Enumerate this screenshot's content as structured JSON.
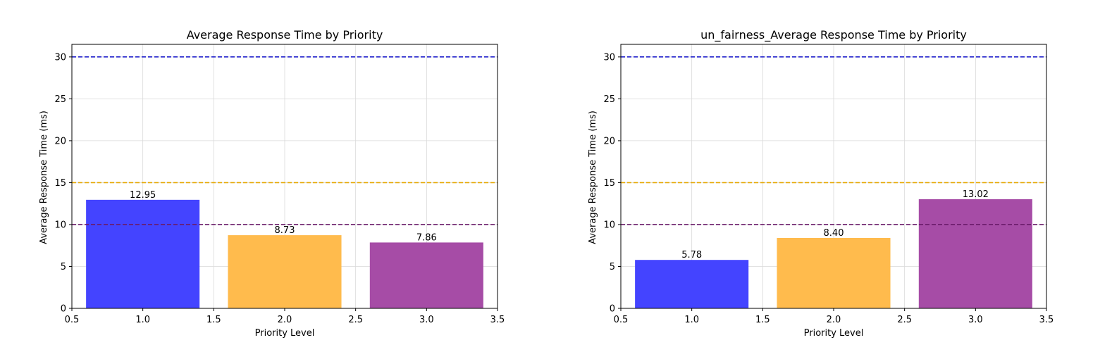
{
  "chart_data": [
    {
      "type": "bar",
      "title": "Average Response Time by Priority",
      "xlabel": "Priority Level",
      "ylabel": "Average Response Time (ms)",
      "x": [
        1.0,
        2.0,
        3.0
      ],
      "values": [
        12.95,
        8.73,
        7.86
      ],
      "data_labels": [
        "12.95",
        "8.73",
        "7.86"
      ],
      "bar_colors": [
        "#4444ff",
        "#ffbb4d",
        "#a64ca6"
      ],
      "xlim": [
        0.5,
        3.5
      ],
      "ylim": [
        0,
        31.5
      ],
      "xticks": [
        "0.5",
        "1.0",
        "1.5",
        "2.0",
        "2.5",
        "3.0",
        "3.5"
      ],
      "yticks": [
        "0",
        "5",
        "10",
        "15",
        "20",
        "25",
        "30"
      ],
      "reference_lines": [
        {
          "y": 30,
          "color": "#2222cc",
          "style": "dashed"
        },
        {
          "y": 15,
          "color": "#e6a800",
          "style": "dashed"
        },
        {
          "y": 10,
          "color": "#6a1b6a",
          "style": "dashed"
        }
      ],
      "grid": true
    },
    {
      "type": "bar",
      "title": "un_fairness_Average Response Time by Priority",
      "xlabel": "Priority Level",
      "ylabel": "Average Response Time (ms)",
      "x": [
        1.0,
        2.0,
        3.0
      ],
      "values": [
        5.78,
        8.4,
        13.02
      ],
      "data_labels": [
        "5.78",
        "8.40",
        "13.02"
      ],
      "bar_colors": [
        "#4444ff",
        "#ffbb4d",
        "#a64ca6"
      ],
      "xlim": [
        0.5,
        3.5
      ],
      "ylim": [
        0,
        31.5
      ],
      "xticks": [
        "0.5",
        "1.0",
        "1.5",
        "2.0",
        "2.5",
        "3.0",
        "3.5"
      ],
      "yticks": [
        "0",
        "5",
        "10",
        "15",
        "20",
        "25",
        "30"
      ],
      "reference_lines": [
        {
          "y": 30,
          "color": "#2222cc",
          "style": "dashed"
        },
        {
          "y": 15,
          "color": "#e6a800",
          "style": "dashed"
        },
        {
          "y": 10,
          "color": "#6a1b6a",
          "style": "dashed"
        }
      ],
      "grid": true
    }
  ]
}
